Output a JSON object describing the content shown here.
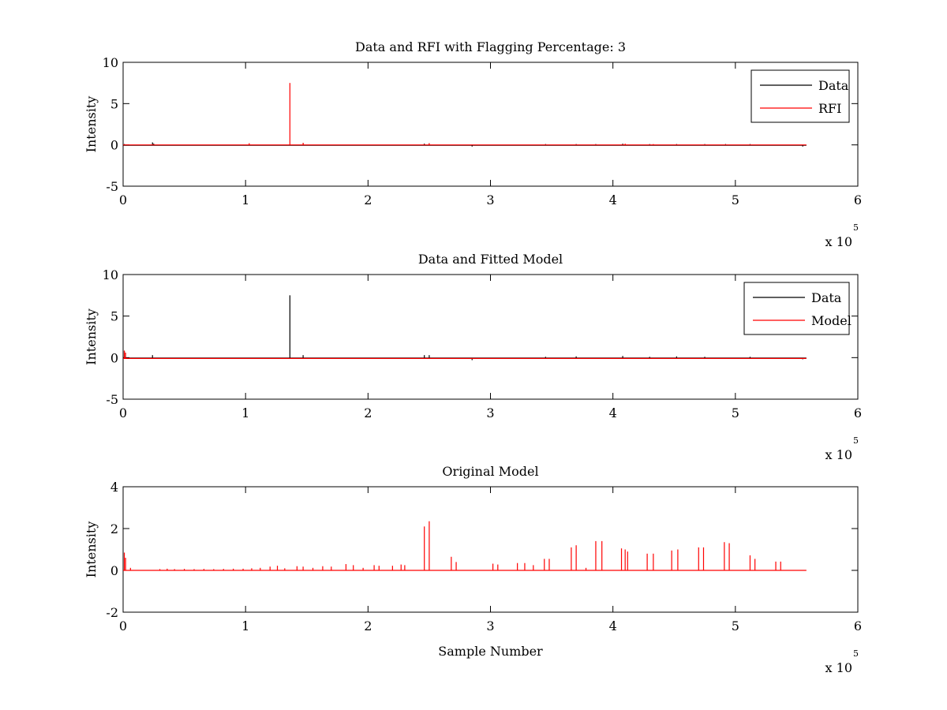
{
  "chart_data": [
    {
      "type": "line",
      "title": "Data and RFI with Flagging Percentage: 3",
      "xlabel": "",
      "ylabel": "Intensity",
      "xlim": [
        0,
        6
      ],
      "ylim": [
        -5,
        10
      ],
      "x_ticks": [
        "0",
        "1",
        "2",
        "3",
        "4",
        "5",
        "6"
      ],
      "y_ticks": [
        "-5",
        "0",
        "5",
        "10"
      ],
      "x_multiplier_base": "x 10",
      "x_multiplier_exp": "5",
      "legend_position": "top-right",
      "series": [
        {
          "name": "Data",
          "color": "#000000",
          "baseline": -0.05,
          "x_end": 5.58,
          "spikes": [
            [
              0.01,
              0.1
            ],
            [
              0.24,
              0.3
            ],
            [
              0.25,
              0.15
            ],
            [
              1.03,
              0.1
            ],
            [
              1.47,
              0.2
            ],
            [
              2.46,
              0.15
            ],
            [
              2.5,
              0.2
            ],
            [
              2.85,
              -0.2
            ],
            [
              3.45,
              0.1
            ],
            [
              3.7,
              0.1
            ],
            [
              3.86,
              0.1
            ],
            [
              4.08,
              0.15
            ],
            [
              4.3,
              0.1
            ],
            [
              4.52,
              0.1
            ],
            [
              4.75,
              0.1
            ],
            [
              4.92,
              0.1
            ],
            [
              5.12,
              0.1
            ],
            [
              5.55,
              -0.2
            ]
          ]
        },
        {
          "name": "RFI",
          "color": "#ff0000",
          "baseline": 0,
          "x_end": 5.58,
          "spikes": [
            [
              1.362,
              7.5
            ],
            [
              1.03,
              0.2
            ],
            [
              1.47,
              0.25
            ],
            [
              2.5,
              0.2
            ],
            [
              4.1,
              0.15
            ],
            [
              4.33,
              0.1
            ]
          ]
        }
      ]
    },
    {
      "type": "line",
      "title": "Data and Fitted Model",
      "xlabel": "",
      "ylabel": "Intensity",
      "xlim": [
        0,
        6
      ],
      "ylim": [
        -5,
        10
      ],
      "x_ticks": [
        "0",
        "1",
        "2",
        "3",
        "4",
        "5",
        "6"
      ],
      "y_ticks": [
        "-5",
        "0",
        "5",
        "10"
      ],
      "x_multiplier_base": "x 10",
      "x_multiplier_exp": "5",
      "legend_position": "top-right",
      "series": [
        {
          "name": "Data",
          "color": "#000000",
          "baseline": -0.05,
          "x_end": 5.58,
          "spikes": [
            [
              0.01,
              0.8
            ],
            [
              0.24,
              0.3
            ],
            [
              1.362,
              7.5
            ],
            [
              1.47,
              0.3
            ],
            [
              2.46,
              0.3
            ],
            [
              2.5,
              0.3
            ],
            [
              2.85,
              -0.3
            ],
            [
              3.45,
              0.1
            ],
            [
              3.7,
              0.15
            ],
            [
              4.08,
              0.2
            ],
            [
              4.3,
              0.1
            ],
            [
              4.52,
              0.15
            ],
            [
              4.75,
              0.1
            ],
            [
              5.12,
              0.1
            ],
            [
              5.55,
              -0.2
            ]
          ]
        },
        {
          "name": "Model",
          "color": "#ff0000",
          "baseline": -0.1,
          "x_end": 5.58,
          "spikes": [
            [
              0.01,
              0.85
            ],
            [
              0.02,
              0.6
            ]
          ]
        }
      ]
    },
    {
      "type": "line",
      "title": "Original Model",
      "xlabel": "Sample Number",
      "ylabel": "Intensity",
      "xlim": [
        0,
        6
      ],
      "ylim": [
        -2,
        4
      ],
      "x_ticks": [
        "0",
        "1",
        "2",
        "3",
        "4",
        "5",
        "6"
      ],
      "y_ticks": [
        "-2",
        "0",
        "2",
        "4"
      ],
      "x_multiplier_base": "x 10",
      "x_multiplier_exp": "5",
      "legend_position": "",
      "series": [
        {
          "name": "",
          "color": "#ff0000",
          "baseline": 0,
          "x_end": 5.58,
          "spikes": [
            [
              0.01,
              0.85
            ],
            [
              0.02,
              0.6
            ],
            [
              0.06,
              0.12
            ],
            [
              0.3,
              0.06
            ],
            [
              0.36,
              0.08
            ],
            [
              0.42,
              0.06
            ],
            [
              0.5,
              0.07
            ],
            [
              0.58,
              0.06
            ],
            [
              0.66,
              0.07
            ],
            [
              0.74,
              0.06
            ],
            [
              0.82,
              0.07
            ],
            [
              0.9,
              0.08
            ],
            [
              0.98,
              0.08
            ],
            [
              1.05,
              0.1
            ],
            [
              1.12,
              0.12
            ],
            [
              1.2,
              0.18
            ],
            [
              1.26,
              0.22
            ],
            [
              1.32,
              0.1
            ],
            [
              1.42,
              0.2
            ],
            [
              1.47,
              0.18
            ],
            [
              1.55,
              0.12
            ],
            [
              1.63,
              0.2
            ],
            [
              1.7,
              0.18
            ],
            [
              1.82,
              0.3
            ],
            [
              1.88,
              0.25
            ],
            [
              1.96,
              0.12
            ],
            [
              2.05,
              0.25
            ],
            [
              2.09,
              0.22
            ],
            [
              2.2,
              0.22
            ],
            [
              2.27,
              0.28
            ],
            [
              2.3,
              0.25
            ],
            [
              2.46,
              2.1
            ],
            [
              2.5,
              2.35
            ],
            [
              2.68,
              0.65
            ],
            [
              2.72,
              0.4
            ],
            [
              3.02,
              0.32
            ],
            [
              3.06,
              0.28
            ],
            [
              3.22,
              0.35
            ],
            [
              3.28,
              0.35
            ],
            [
              3.35,
              0.25
            ],
            [
              3.44,
              0.55
            ],
            [
              3.48,
              0.55
            ],
            [
              3.66,
              1.1
            ],
            [
              3.7,
              1.2
            ],
            [
              3.78,
              0.12
            ],
            [
              3.86,
              1.4
            ],
            [
              3.91,
              1.4
            ],
            [
              4.07,
              1.05
            ],
            [
              4.1,
              1.0
            ],
            [
              4.12,
              0.9
            ],
            [
              4.28,
              0.8
            ],
            [
              4.33,
              0.8
            ],
            [
              4.48,
              0.95
            ],
            [
              4.53,
              1.0
            ],
            [
              4.7,
              1.1
            ],
            [
              4.74,
              1.1
            ],
            [
              4.91,
              1.35
            ],
            [
              4.95,
              1.3
            ],
            [
              5.12,
              0.72
            ],
            [
              5.16,
              0.55
            ],
            [
              5.33,
              0.42
            ],
            [
              5.37,
              0.42
            ]
          ]
        }
      ]
    }
  ]
}
